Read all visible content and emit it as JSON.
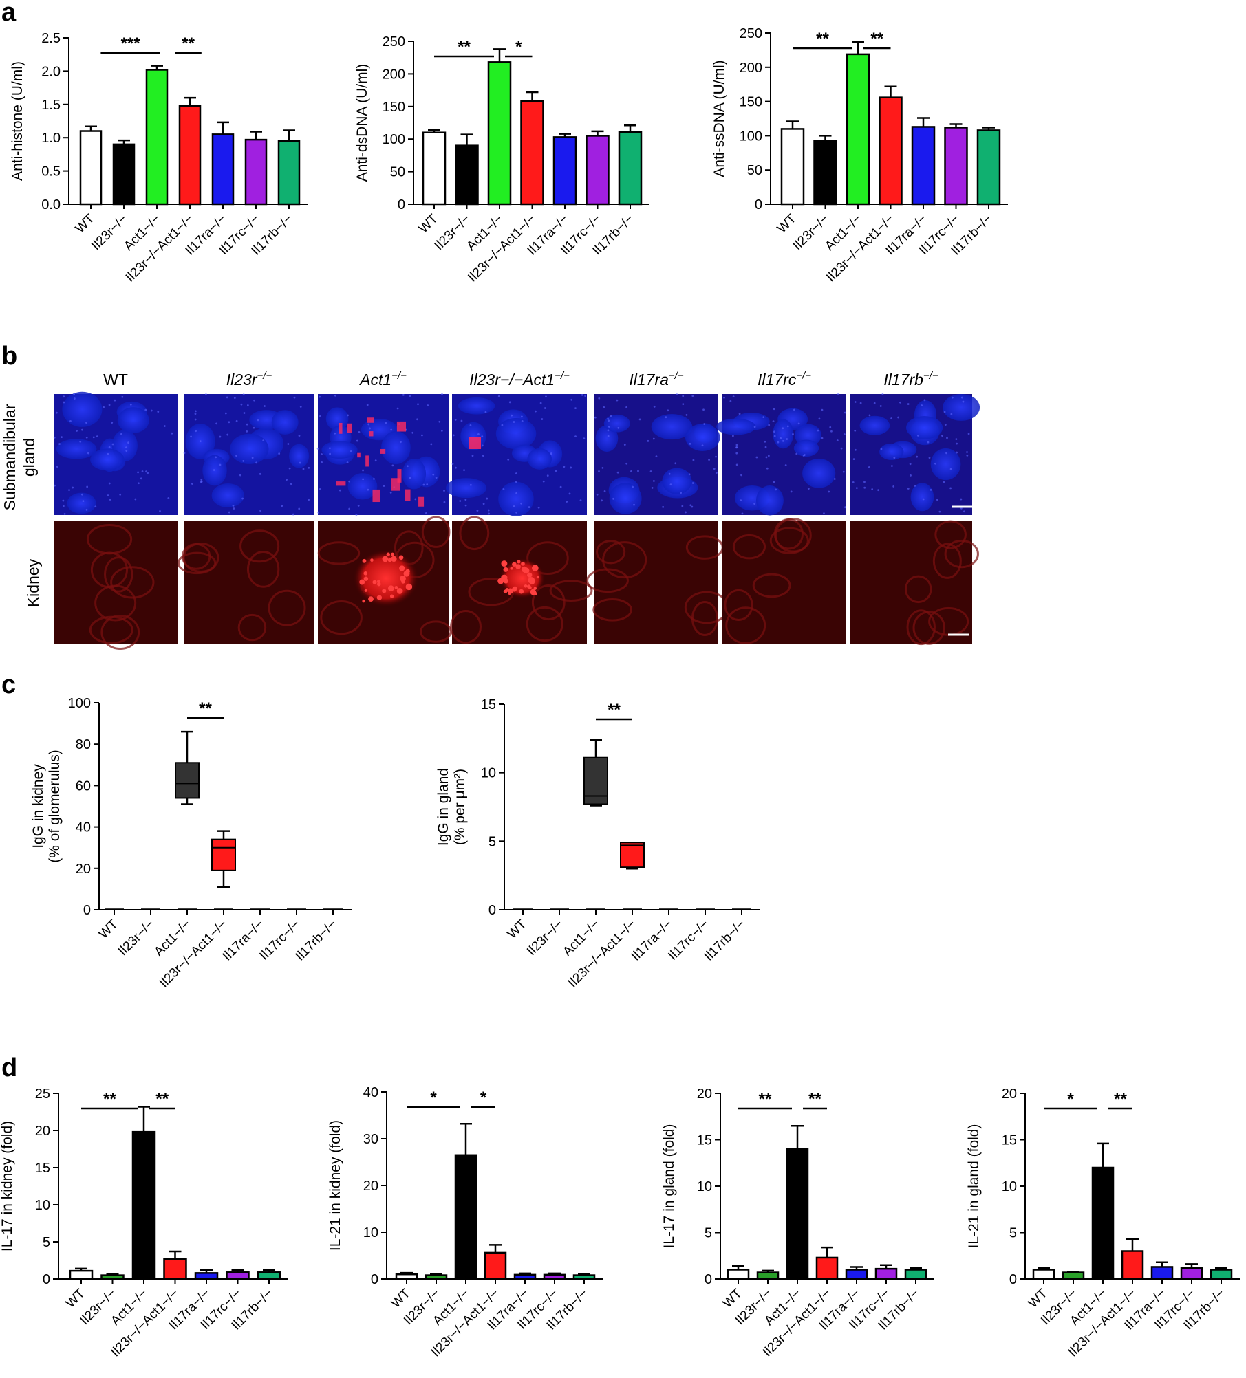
{
  "panels": {
    "a": "a",
    "b": "b",
    "c": "c",
    "d": "d"
  },
  "colors": {
    "WT": "#ffffff",
    "Il23r-/-": "#000000",
    "Act1-/-": "#22ee22",
    "Il23r-/-Act1-/-": "#ff1a1a",
    "Il17ra-/-": "#1a1aee",
    "Il17rc-/-": "#a020e0",
    "Il17rb-/-": "#10b070",
    "box_act1": "#333333",
    "box_dko": "#ff1a1a",
    "d_Il23r": "#2aa02a"
  },
  "categories": [
    "WT",
    "Il23r−/−",
    "Act1−/−",
    "Il23r−/−Act1−/−",
    "Il17ra−/−",
    "Il17rc−/−",
    "Il17rb−/−"
  ],
  "panel_b": {
    "columns": [
      "WT",
      "Il23r",
      "Act1",
      "Il23r−/−Act1",
      "Il17ra",
      "Il17rc",
      "Il17rb"
    ],
    "superscript": "−/−",
    "rows": [
      "Submandibular gland",
      "Kidney"
    ]
  },
  "chart_data": [
    {
      "id": "a1",
      "type": "bar",
      "ylabel": "Anti-histone (U/ml)",
      "ylim": [
        0,
        2.5
      ],
      "yticks": [
        "0.0",
        "0.5",
        "1.0",
        "1.5",
        "2.0",
        "2.5"
      ],
      "values": [
        1.1,
        0.9,
        2.02,
        1.48,
        1.05,
        0.97,
        0.95
      ],
      "errors": [
        0.07,
        0.06,
        0.06,
        0.12,
        0.18,
        0.12,
        0.16
      ],
      "sig": [
        {
          "from": 1,
          "to": 2,
          "label": "***"
        },
        {
          "from": 3,
          "to": 3,
          "label": "**"
        }
      ]
    },
    {
      "id": "a2",
      "type": "bar",
      "ylabel": "Anti-dsDNA (U/ml)",
      "ylim": [
        0,
        250
      ],
      "yticks": [
        "0",
        "50",
        "100",
        "150",
        "200",
        "250"
      ],
      "values": [
        110,
        90,
        218,
        158,
        103,
        105,
        111
      ],
      "errors": [
        4,
        17,
        20,
        14,
        5,
        7,
        10
      ],
      "sig": [
        {
          "from": 0,
          "to": 2,
          "label": "**"
        },
        {
          "from": 2,
          "to": 3,
          "label": "*"
        }
      ]
    },
    {
      "id": "a3",
      "type": "bar",
      "ylabel": "Anti-ssDNA (U/ml)",
      "ylim": [
        0,
        250
      ],
      "yticks": [
        "0",
        "50",
        "100",
        "150",
        "200",
        "250"
      ],
      "values": [
        110,
        93,
        219,
        156,
        113,
        112,
        108
      ],
      "errors": [
        11,
        7,
        18,
        16,
        13,
        5,
        4
      ],
      "sig": [
        {
          "from": 0,
          "to": 2,
          "label": "**"
        },
        {
          "from": 2,
          "to": 3,
          "label": "**"
        }
      ]
    },
    {
      "id": "c1",
      "type": "box",
      "ylabel": [
        "IgG in kidney",
        "(% of glomerulus)"
      ],
      "ylim": [
        0,
        100
      ],
      "yticks": [
        "0",
        "20",
        "40",
        "60",
        "80",
        "100"
      ],
      "boxes": [
        {
          "index": 2,
          "min": 51,
          "q1": 54,
          "median": 61,
          "q3": 71,
          "max": 86
        },
        {
          "index": 3,
          "min": 11,
          "q1": 19,
          "median": 30,
          "q3": 34,
          "max": 38
        }
      ],
      "sig": [
        {
          "from": 2,
          "to": 3,
          "label": "**"
        }
      ]
    },
    {
      "id": "c2",
      "type": "box",
      "ylabel": [
        "IgG in gland",
        "(% per μm²)"
      ],
      "ylim": [
        0,
        15
      ],
      "yticks": [
        "0",
        "5",
        "10",
        "15"
      ],
      "boxes": [
        {
          "index": 2,
          "min": 7.6,
          "q1": 7.7,
          "median": 8.3,
          "q3": 11.1,
          "max": 12.4
        },
        {
          "index": 3,
          "min": 3.0,
          "q1": 3.1,
          "median": 4.7,
          "q3": 4.9,
          "max": 4.9
        }
      ],
      "sig": [
        {
          "from": 2,
          "to": 3,
          "label": "**"
        }
      ]
    },
    {
      "id": "d1",
      "type": "bar",
      "ylabel": "IL-17 in kidney (fold)",
      "ylim": [
        0,
        25
      ],
      "yticks": [
        "0",
        "5",
        "10",
        "15",
        "20",
        "25"
      ],
      "values": [
        1.1,
        0.5,
        19.8,
        2.7,
        0.8,
        0.9,
        0.9
      ],
      "errors": [
        0.3,
        0.2,
        3.4,
        1.0,
        0.4,
        0.3,
        0.3
      ],
      "sig": [
        {
          "from": 0,
          "to": 2,
          "label": "**"
        },
        {
          "from": 2,
          "to": 3,
          "label": "**"
        }
      ]
    },
    {
      "id": "d2",
      "type": "bar",
      "ylabel": "IL-21 in kidney (fold)",
      "ylim": [
        0,
        40
      ],
      "yticks": [
        "0",
        "10",
        "20",
        "30",
        "40"
      ],
      "values": [
        1.0,
        0.8,
        26.5,
        5.6,
        0.9,
        0.9,
        0.8
      ],
      "errors": [
        0.3,
        0.2,
        6.7,
        1.7,
        0.3,
        0.3,
        0.2
      ],
      "sig": [
        {
          "from": 0,
          "to": 2,
          "label": "*"
        },
        {
          "from": 2,
          "to": 3,
          "label": "*"
        }
      ]
    },
    {
      "id": "d3",
      "type": "bar",
      "ylabel": "IL-17 in gland (fold)",
      "ylim": [
        0,
        20
      ],
      "yticks": [
        "0",
        "5",
        "10",
        "15",
        "20"
      ],
      "values": [
        1.0,
        0.7,
        14.0,
        2.3,
        1.0,
        1.1,
        1.0
      ],
      "errors": [
        0.4,
        0.2,
        2.5,
        1.1,
        0.3,
        0.4,
        0.2
      ],
      "sig": [
        {
          "from": 0,
          "to": 2,
          "label": "**"
        },
        {
          "from": 2,
          "to": 3,
          "label": "**"
        }
      ]
    },
    {
      "id": "d4",
      "type": "bar",
      "ylabel": "IL-21 in gland (fold)",
      "ylim": [
        0,
        20
      ],
      "yticks": [
        "0",
        "5",
        "10",
        "15",
        "20"
      ],
      "values": [
        1.0,
        0.7,
        12.0,
        3.0,
        1.3,
        1.2,
        1.0
      ],
      "errors": [
        0.2,
        0.1,
        2.6,
        1.3,
        0.5,
        0.4,
        0.2
      ],
      "sig": [
        {
          "from": 0,
          "to": 2,
          "label": "*"
        },
        {
          "from": 2,
          "to": 3,
          "label": "**"
        }
      ]
    }
  ]
}
